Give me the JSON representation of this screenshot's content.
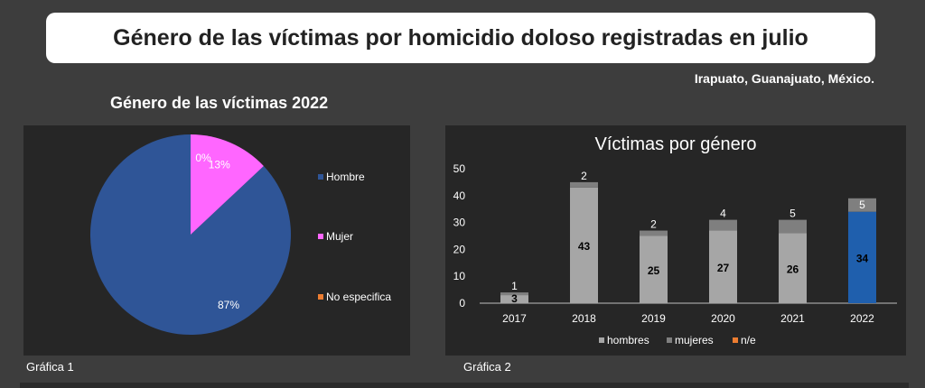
{
  "header": {
    "title": "Género de las víctimas por homicidio doloso registradas en julio",
    "location": "Irapuato, Guanajuato, México."
  },
  "colors": {
    "background": "#3d3d3d",
    "panel": "#262626",
    "hombre": "#2f5597",
    "mujer": "#ff66ff",
    "no_especifica": "#ed7d31",
    "hombres_bar": "#a6a6a6",
    "mujeres_bar": "#7f7f7f",
    "highlight_2022": "#1f5fad"
  },
  "captions": {
    "chart1": "Gráfica 1",
    "chart2": "Gráfica 2"
  },
  "chart_data": [
    {
      "type": "pie",
      "title": "Género de las víctimas 2022",
      "labels": [
        "Hombre",
        "Mujer",
        "No especifica"
      ],
      "values": [
        87,
        13,
        0
      ],
      "value_labels": [
        "87%",
        "13%",
        "0%"
      ],
      "colors": [
        "#2f5597",
        "#ff66ff",
        "#ed7d31"
      ],
      "legend_position": "right"
    },
    {
      "type": "bar",
      "stacked": true,
      "title": "Víctimas por género",
      "categories": [
        "2017",
        "2018",
        "2019",
        "2020",
        "2021",
        "2022"
      ],
      "series": [
        {
          "name": "hombres",
          "values": [
            3,
            43,
            25,
            27,
            26,
            34
          ]
        },
        {
          "name": "mujeres",
          "values": [
            1,
            2,
            2,
            4,
            5,
            5
          ]
        },
        {
          "name": "n/e",
          "values": [
            0,
            0,
            0,
            0,
            0,
            0
          ]
        }
      ],
      "ylim": [
        0,
        50
      ],
      "yticks": [
        0,
        10,
        20,
        30,
        40,
        50
      ],
      "legend_position": "bottom",
      "grid": false
    }
  ]
}
